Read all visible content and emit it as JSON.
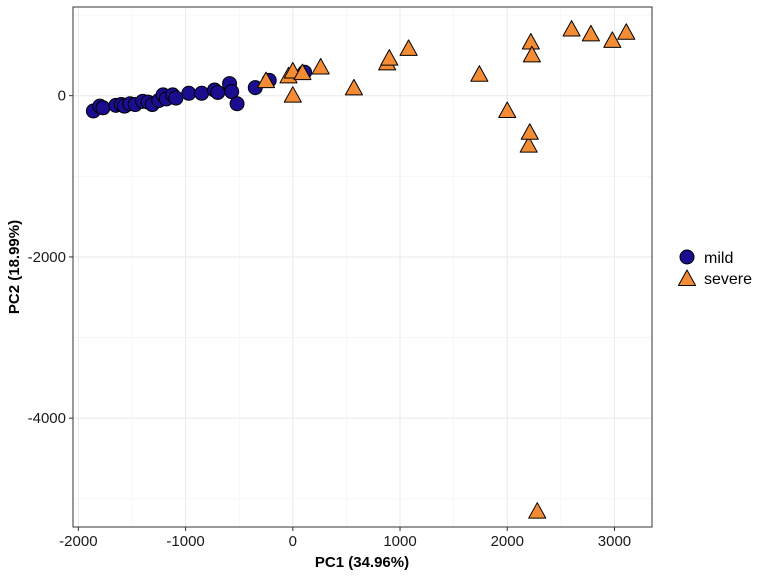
{
  "chart_data": {
    "type": "scatter",
    "xlabel": "PC1 (34.96%)",
    "ylabel": "PC2 (18.99%)",
    "xlim": [
      -2050,
      3350
    ],
    "ylim": [
      -5350,
      1100
    ],
    "x_ticks": [
      -2000,
      -1000,
      0,
      1000,
      2000,
      3000
    ],
    "x_tick_labels": [
      "-2000",
      "-1000",
      "0",
      "1000",
      "2000",
      "3000"
    ],
    "y_ticks": [
      -4000,
      -2000,
      0
    ],
    "y_tick_labels": [
      "-4000",
      "-2000",
      "0"
    ],
    "grid": true,
    "legend_position": "right",
    "series": [
      {
        "name": "mild",
        "marker": "circle",
        "color": "#1b0d8f",
        "points": [
          {
            "x": -1860,
            "y": -190
          },
          {
            "x": -1800,
            "y": -130
          },
          {
            "x": -1770,
            "y": -150
          },
          {
            "x": -1650,
            "y": -120
          },
          {
            "x": -1600,
            "y": -110
          },
          {
            "x": -1570,
            "y": -130
          },
          {
            "x": -1520,
            "y": -100
          },
          {
            "x": -1470,
            "y": -110
          },
          {
            "x": -1400,
            "y": -70
          },
          {
            "x": -1350,
            "y": -80
          },
          {
            "x": -1310,
            "y": -110
          },
          {
            "x": -1250,
            "y": -60
          },
          {
            "x": -1210,
            "y": 10
          },
          {
            "x": -1180,
            "y": -40
          },
          {
            "x": -1120,
            "y": 10
          },
          {
            "x": -1090,
            "y": -30
          },
          {
            "x": -970,
            "y": 30
          },
          {
            "x": -850,
            "y": 30
          },
          {
            "x": -730,
            "y": 70
          },
          {
            "x": -700,
            "y": 40
          },
          {
            "x": -590,
            "y": 150
          },
          {
            "x": -570,
            "y": 50
          },
          {
            "x": -520,
            "y": -100
          },
          {
            "x": -350,
            "y": 100
          },
          {
            "x": -220,
            "y": 190
          },
          {
            "x": 110,
            "y": 290
          }
        ]
      },
      {
        "name": "severe",
        "marker": "triangle",
        "color": "#f48c36",
        "points": [
          {
            "x": -250,
            "y": 180
          },
          {
            "x": -40,
            "y": 240
          },
          {
            "x": 0,
            "y": 300
          },
          {
            "x": 0,
            "y": 0
          },
          {
            "x": 90,
            "y": 280
          },
          {
            "x": 260,
            "y": 350
          },
          {
            "x": 570,
            "y": 90
          },
          {
            "x": 880,
            "y": 400
          },
          {
            "x": 900,
            "y": 460
          },
          {
            "x": 1080,
            "y": 580
          },
          {
            "x": 1740,
            "y": 260
          },
          {
            "x": 2000,
            "y": -190
          },
          {
            "x": 2200,
            "y": -620
          },
          {
            "x": 2210,
            "y": -460
          },
          {
            "x": 2220,
            "y": 660
          },
          {
            "x": 2230,
            "y": 500
          },
          {
            "x": 2280,
            "y": -5160
          },
          {
            "x": 2600,
            "y": 820
          },
          {
            "x": 2780,
            "y": 760
          },
          {
            "x": 2980,
            "y": 680
          },
          {
            "x": 3110,
            "y": 780
          }
        ]
      }
    ]
  }
}
